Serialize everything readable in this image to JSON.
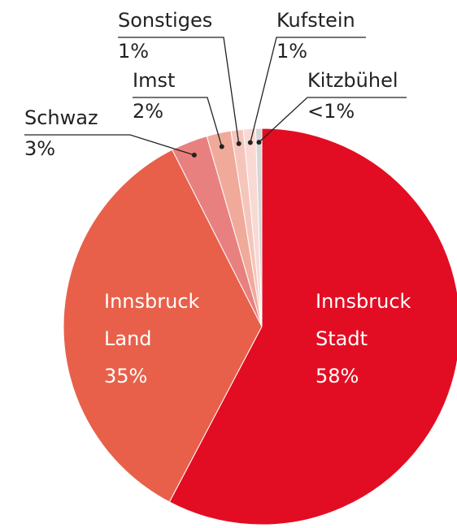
{
  "chart_data": {
    "type": "pie",
    "categories": [
      "Innsbruck Stadt",
      "Innsbruck Land",
      "Schwaz",
      "Imst",
      "Sonstiges",
      "Kufstein",
      "Kitzbühel"
    ],
    "values": [
      58,
      35,
      3,
      2,
      1,
      1,
      0.5
    ],
    "value_labels": [
      "58%",
      "35%",
      "3%",
      "2%",
      "1%",
      "1%",
      "<1%"
    ],
    "colors": [
      "#e30d23",
      "#e8604a",
      "#e98080",
      "#f0aa9a",
      "#f5c5bc",
      "#f8d9d4",
      "#d6d6d6"
    ]
  }
}
